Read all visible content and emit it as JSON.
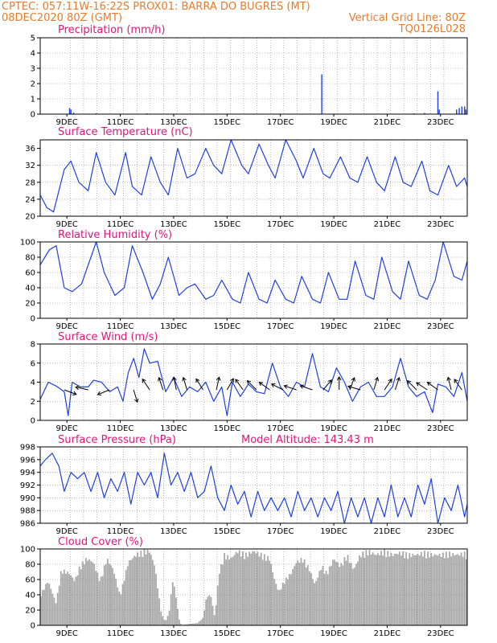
{
  "header": {
    "line1_left": "CPTEC:   057:11W-16:22S   PROX01: BARRA DO BUGRES (MT)",
    "line2_left": "08DEC2020 80Z (GMT)",
    "line2_right": "Vertical Grid Line: 80Z",
    "line3_right": "TQ0126L028"
  },
  "colors": {
    "header": "#e87a2b",
    "title": "#e0157a",
    "series": "#1f3fe0",
    "cloud": "#a8a8a8",
    "grid": "#888888"
  },
  "chart_data": [
    {
      "type": "bar",
      "title": "Precipitation (mm/h)",
      "ylim": [
        0,
        5
      ],
      "yticks": [
        "0",
        "1",
        "2",
        "3",
        "4",
        "5"
      ],
      "xticks": [
        "9DEC",
        "11DEC",
        "13DEC",
        "15DEC",
        "17DEC",
        "19DEC",
        "21DEC",
        "23DEC"
      ],
      "grid": true,
      "series": [
        {
          "points": [
            [
              1.1,
              0.4
            ],
            [
              1.15,
              0.3
            ],
            [
              1.25,
              0.1
            ],
            [
              2.1,
              0.05
            ],
            [
              4.0,
              0.05
            ],
            [
              10.55,
              2.6
            ],
            [
              14.0,
              0.05
            ],
            [
              14.4,
              0.08
            ],
            [
              14.9,
              1.5
            ],
            [
              14.95,
              0.3
            ],
            [
              15.6,
              0.3
            ],
            [
              15.7,
              0.4
            ],
            [
              15.8,
              0.5
            ],
            [
              15.9,
              0.5
            ],
            [
              15.95,
              0.3
            ]
          ]
        }
      ]
    },
    {
      "type": "line",
      "title": "Surface Temperature (nC)",
      "ylim": [
        20,
        38
      ],
      "yticks": [
        "20",
        "24",
        "28",
        "32",
        "36"
      ],
      "xticks": [
        "9DEC",
        "11DEC",
        "13DEC",
        "15DEC",
        "17DEC",
        "19DEC",
        "21DEC",
        "23DEC"
      ],
      "grid": true,
      "series": [
        {
          "x": [
            0.0,
            0.25,
            0.5,
            0.9,
            1.15,
            1.45,
            1.8,
            2.1,
            2.45,
            2.8,
            3.2,
            3.45,
            3.8,
            4.15,
            4.5,
            4.8,
            5.15,
            5.5,
            5.8,
            6.2,
            6.5,
            6.8,
            7.15,
            7.55,
            7.8,
            8.2,
            8.55,
            8.8,
            9.2,
            9.6,
            9.85,
            10.25,
            10.6,
            10.85,
            11.25,
            11.6,
            11.9,
            12.25,
            12.6,
            12.9,
            13.3,
            13.6,
            13.9,
            14.3,
            14.6,
            14.9,
            15.3,
            15.6,
            15.9,
            16.0
          ],
          "y": [
            25,
            22,
            21,
            31,
            33,
            28,
            26,
            35,
            28,
            25,
            35,
            27,
            25,
            34,
            28,
            25,
            36,
            29,
            30,
            36,
            32,
            30,
            38,
            32,
            30,
            37,
            32,
            29,
            38,
            33,
            29,
            36,
            30,
            29,
            34,
            29,
            28,
            34,
            28,
            26,
            34,
            28,
            27,
            33,
            26,
            25,
            32,
            27,
            29,
            27
          ]
        }
      ]
    },
    {
      "type": "line",
      "title": "Relative Humidity (%)",
      "ylim": [
        0,
        100
      ],
      "yticks": [
        "0",
        "20",
        "40",
        "60",
        "80",
        "100"
      ],
      "xticks": [
        "9DEC",
        "11DEC",
        "13DEC",
        "15DEC",
        "17DEC",
        "19DEC",
        "21DEC",
        "23DEC"
      ],
      "grid": true,
      "series": [
        {
          "x": [
            0.0,
            0.35,
            0.6,
            0.9,
            1.2,
            1.55,
            1.8,
            2.1,
            2.4,
            2.8,
            3.15,
            3.45,
            3.85,
            4.2,
            4.5,
            4.8,
            5.2,
            5.5,
            5.8,
            6.2,
            6.5,
            6.8,
            7.2,
            7.5,
            7.8,
            8.2,
            8.5,
            8.8,
            9.2,
            9.5,
            9.8,
            10.2,
            10.5,
            10.8,
            11.2,
            11.5,
            11.8,
            12.2,
            12.5,
            12.8,
            13.2,
            13.5,
            13.8,
            14.2,
            14.5,
            14.8,
            15.1,
            15.5,
            15.8,
            16.0
          ],
          "y": [
            70,
            90,
            95,
            40,
            35,
            45,
            70,
            100,
            60,
            30,
            40,
            95,
            60,
            25,
            45,
            80,
            30,
            40,
            45,
            25,
            30,
            50,
            25,
            20,
            60,
            25,
            20,
            50,
            25,
            20,
            55,
            25,
            20,
            60,
            25,
            25,
            75,
            30,
            25,
            80,
            35,
            25,
            75,
            30,
            25,
            50,
            100,
            55,
            50,
            75
          ]
        }
      ]
    },
    {
      "type": "line",
      "title": "Surface Wind (m/s)",
      "ylim": [
        0,
        8
      ],
      "yticks": [
        "0",
        "2",
        "4",
        "6",
        "8"
      ],
      "xticks": [
        "9DEC",
        "11DEC",
        "13DEC",
        "15DEC",
        "17DEC",
        "19DEC",
        "21DEC",
        "23DEC"
      ],
      "grid": true,
      "series": [
        {
          "x": [
            0.0,
            0.3,
            0.6,
            0.9,
            1.05,
            1.2,
            1.5,
            1.8,
            2.0,
            2.3,
            2.6,
            2.9,
            3.1,
            3.3,
            3.5,
            3.7,
            3.9,
            4.1,
            4.4,
            4.7,
            5.0,
            5.3,
            5.6,
            5.9,
            6.2,
            6.5,
            6.8,
            7.0,
            7.2,
            7.5,
            7.8,
            8.1,
            8.4,
            8.7,
            9.0,
            9.3,
            9.6,
            9.9,
            10.2,
            10.5,
            10.8,
            11.1,
            11.4,
            11.7,
            12.0,
            12.3,
            12.6,
            12.9,
            13.2,
            13.5,
            13.8,
            14.1,
            14.4,
            14.7,
            14.9,
            15.2,
            15.5,
            15.8,
            16.0
          ],
          "y": [
            2.2,
            4.0,
            3.6,
            3.0,
            0.5,
            4.0,
            3.5,
            3.5,
            4.2,
            4.0,
            3.0,
            3.5,
            2.0,
            5.0,
            6.5,
            4.5,
            7.5,
            6.0,
            6.2,
            3.0,
            4.5,
            2.5,
            3.5,
            3.0,
            4.0,
            2.0,
            3.5,
            0.5,
            4.0,
            2.5,
            3.8,
            3.0,
            2.8,
            6.0,
            3.5,
            2.5,
            4.0,
            3.5,
            7.0,
            3.5,
            3.0,
            5.5,
            4.0,
            2.0,
            3.5,
            4.0,
            2.5,
            2.5,
            3.5,
            6.5,
            3.5,
            2.5,
            3.0,
            0.8,
            3.8,
            3.5,
            2.5,
            5.0,
            2.0
          ]
        }
      ],
      "barbs": [
        {
          "x": 0.9,
          "u": 0.8,
          "v": -0.3
        },
        {
          "x": 1.8,
          "u": -0.9,
          "v": 0.2
        },
        {
          "x": 2.6,
          "u": -1.0,
          "v": -0.4
        },
        {
          "x": 3.5,
          "u": 0.3,
          "v": -1.0
        },
        {
          "x": 4.1,
          "u": -0.6,
          "v": 0.9
        },
        {
          "x": 4.6,
          "u": -0.3,
          "v": 0.9
        },
        {
          "x": 5.1,
          "u": -0.2,
          "v": 1.0
        },
        {
          "x": 5.5,
          "u": -0.3,
          "v": 1.0
        },
        {
          "x": 6.1,
          "u": -0.5,
          "v": 0.8
        },
        {
          "x": 6.6,
          "u": 0.2,
          "v": 0.9
        },
        {
          "x": 7.0,
          "u": 0.4,
          "v": 0.7
        },
        {
          "x": 7.6,
          "u": -0.5,
          "v": 0.7
        },
        {
          "x": 8.1,
          "u": -0.6,
          "v": 0.6
        },
        {
          "x": 8.6,
          "u": -0.7,
          "v": 0.5
        },
        {
          "x": 9.1,
          "u": -0.8,
          "v": 0.4
        },
        {
          "x": 9.6,
          "u": -0.9,
          "v": 0.3
        },
        {
          "x": 10.2,
          "u": -0.9,
          "v": 0.3
        },
        {
          "x": 10.6,
          "u": 0.6,
          "v": 0.7
        },
        {
          "x": 11.2,
          "u": 0.0,
          "v": 1.0
        },
        {
          "x": 11.6,
          "u": 0.3,
          "v": 0.8
        },
        {
          "x": 12.0,
          "u": -0.7,
          "v": 0.2
        },
        {
          "x": 12.5,
          "u": 0.3,
          "v": 1.0
        },
        {
          "x": 12.9,
          "u": 0.6,
          "v": 0.9
        },
        {
          "x": 13.3,
          "u": 0.3,
          "v": 0.9
        },
        {
          "x": 14.1,
          "u": -0.5,
          "v": 0.5
        },
        {
          "x": 14.5,
          "u": -0.6,
          "v": 0.4
        },
        {
          "x": 14.9,
          "u": -0.7,
          "v": 0.5
        },
        {
          "x": 15.4,
          "u": -0.2,
          "v": 0.8
        },
        {
          "x": 15.8,
          "u": -0.5,
          "v": 0.7
        }
      ]
    },
    {
      "type": "line",
      "title": "Surface Pressure (hPa)",
      "annotation": "Model Altitude: 143.43 m",
      "ylim": [
        986,
        998
      ],
      "yticks": [
        "986",
        "988",
        "990",
        "992",
        "994",
        "996",
        "998"
      ],
      "xticks": [
        "9DEC",
        "11DEC",
        "13DEC",
        "15DEC",
        "17DEC",
        "19DEC",
        "21DEC",
        "23DEC"
      ],
      "grid": true,
      "series": [
        {
          "x": [
            0.0,
            0.2,
            0.45,
            0.7,
            0.9,
            1.15,
            1.4,
            1.65,
            1.9,
            2.15,
            2.4,
            2.65,
            2.9,
            3.15,
            3.4,
            3.65,
            3.9,
            4.15,
            4.4,
            4.65,
            4.9,
            5.15,
            5.4,
            5.65,
            5.9,
            6.15,
            6.4,
            6.65,
            6.9,
            7.15,
            7.4,
            7.65,
            7.9,
            8.15,
            8.4,
            8.65,
            8.9,
            9.15,
            9.4,
            9.65,
            9.9,
            10.15,
            10.4,
            10.65,
            10.9,
            11.15,
            11.4,
            11.65,
            11.9,
            12.15,
            12.4,
            12.65,
            12.9,
            13.15,
            13.4,
            13.65,
            13.9,
            14.15,
            14.4,
            14.65,
            14.9,
            15.15,
            15.4,
            15.65,
            15.9,
            16.0
          ],
          "y": [
            995,
            996,
            997,
            995,
            991,
            994,
            993,
            994,
            991,
            994,
            990,
            993,
            991,
            994,
            989,
            994,
            992,
            994,
            990,
            997,
            992,
            994,
            991,
            994,
            990,
            991,
            995,
            990,
            988,
            992,
            989,
            991,
            987,
            991,
            988,
            990,
            988,
            990,
            987,
            991,
            988,
            990,
            987,
            990,
            988,
            991,
            986,
            990,
            987,
            990,
            986,
            990,
            987,
            992,
            987,
            990,
            987,
            992,
            989,
            993,
            986,
            990,
            988,
            992,
            987,
            989
          ]
        }
      ]
    },
    {
      "type": "bar",
      "title": "Cloud Cover (%)",
      "ylim": [
        0,
        100
      ],
      "yticks": [
        "0",
        "20",
        "40",
        "60",
        "80",
        "100"
      ],
      "xticks": [
        "9DEC",
        "11DEC",
        "13DEC",
        "15DEC",
        "17DEC",
        "19DEC",
        "21DEC",
        "23DEC"
      ],
      "grid": true,
      "profile": [
        [
          0.0,
          40
        ],
        [
          0.3,
          60
        ],
        [
          0.6,
          30
        ],
        [
          0.8,
          75
        ],
        [
          1.1,
          70
        ],
        [
          1.3,
          60
        ],
        [
          1.5,
          80
        ],
        [
          1.75,
          90
        ],
        [
          2.0,
          85
        ],
        [
          2.25,
          60
        ],
        [
          2.5,
          90
        ],
        [
          2.75,
          75
        ],
        [
          3.0,
          40
        ],
        [
          3.3,
          85
        ],
        [
          3.6,
          95
        ],
        [
          3.9,
          100
        ],
        [
          4.1,
          100
        ],
        [
          4.3,
          80
        ],
        [
          4.45,
          40
        ],
        [
          4.55,
          15
        ],
        [
          4.7,
          5
        ],
        [
          4.85,
          20
        ],
        [
          4.95,
          60
        ],
        [
          5.05,
          50
        ],
        [
          5.2,
          10
        ],
        [
          5.3,
          0
        ],
        [
          5.6,
          2
        ],
        [
          5.9,
          3
        ],
        [
          6.1,
          10
        ],
        [
          6.25,
          40
        ],
        [
          6.4,
          40
        ],
        [
          6.55,
          10
        ],
        [
          6.7,
          70
        ],
        [
          6.9,
          95
        ],
        [
          7.15,
          90
        ],
        [
          7.4,
          100
        ],
        [
          7.7,
          95
        ],
        [
          8.0,
          100
        ],
        [
          8.3,
          95
        ],
        [
          8.6,
          90
        ],
        [
          8.8,
          60
        ],
        [
          8.95,
          45
        ],
        [
          9.15,
          60
        ],
        [
          9.4,
          70
        ],
        [
          9.6,
          85
        ],
        [
          9.85,
          90
        ],
        [
          10.1,
          75
        ],
        [
          10.3,
          55
        ],
        [
          10.55,
          80
        ],
        [
          10.75,
          70
        ],
        [
          11.0,
          90
        ],
        [
          11.25,
          80
        ],
        [
          11.5,
          95
        ],
        [
          11.75,
          75
        ],
        [
          12.0,
          95
        ],
        [
          12.3,
          100
        ],
        [
          12.6,
          95
        ],
        [
          12.9,
          100
        ],
        [
          13.2,
          95
        ],
        [
          13.5,
          98
        ],
        [
          13.8,
          95
        ],
        [
          14.1,
          95
        ],
        [
          14.4,
          98
        ],
        [
          14.7,
          95
        ],
        [
          15.0,
          95
        ],
        [
          15.3,
          97
        ],
        [
          15.6,
          95
        ],
        [
          15.9,
          97
        ],
        [
          16.0,
          95
        ]
      ]
    }
  ]
}
